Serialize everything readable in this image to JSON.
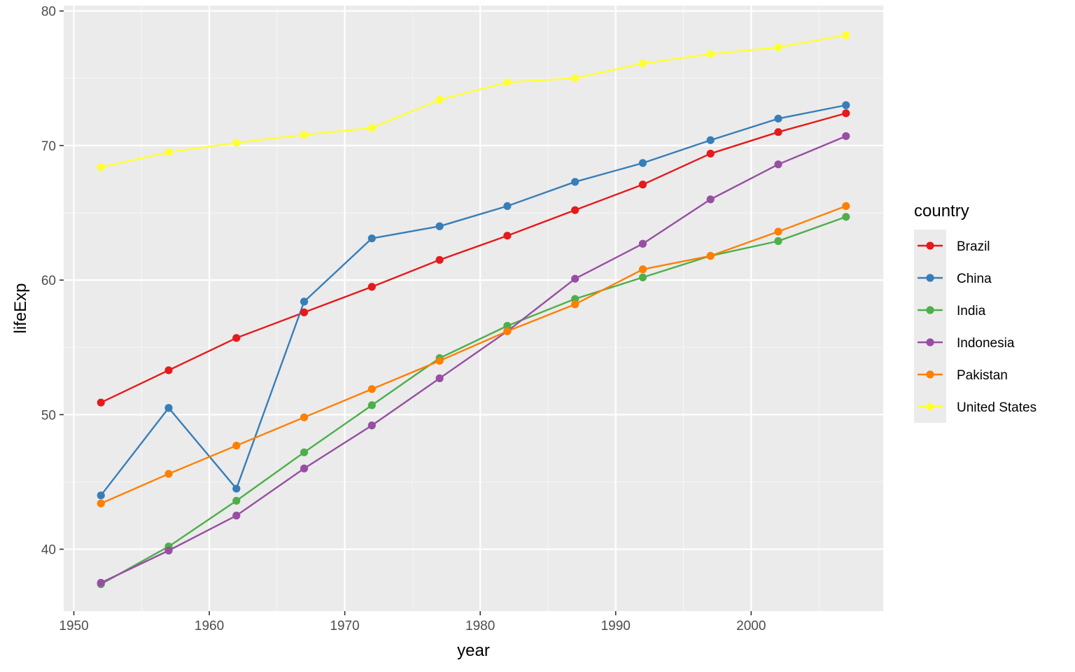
{
  "chart_data": {
    "type": "line",
    "xlabel": "year",
    "ylabel": "lifeExp",
    "xlim": [
      1949.25,
      2009.75
    ],
    "ylim": [
      35.4,
      80.4
    ],
    "x_ticks": [
      1950,
      1960,
      1970,
      1980,
      1990,
      2000
    ],
    "x_tick_labels": [
      "1950",
      "1960",
      "1970",
      "1980",
      "1990",
      "2000"
    ],
    "x_minor_ticks": [
      1955,
      1965,
      1975,
      1985,
      1995,
      2005
    ],
    "y_ticks": [
      40,
      50,
      60,
      70,
      80
    ],
    "y_tick_labels": [
      "40",
      "50",
      "60",
      "70",
      "80"
    ],
    "y_minor_ticks": [
      45,
      55,
      65,
      75
    ],
    "grid": true,
    "legend": {
      "title": "country",
      "position": "right"
    },
    "x": [
      1952,
      1957,
      1962,
      1967,
      1972,
      1977,
      1982,
      1987,
      1992,
      1997,
      2002,
      2007
    ],
    "series": [
      {
        "name": "Brazil",
        "color": "#E41A1C",
        "values": [
          50.9,
          53.3,
          55.7,
          57.6,
          59.5,
          61.5,
          63.3,
          65.2,
          67.1,
          69.4,
          71.0,
          72.4
        ]
      },
      {
        "name": "China",
        "color": "#377EB8",
        "values": [
          44.0,
          50.5,
          44.5,
          58.4,
          63.1,
          64.0,
          65.5,
          67.3,
          68.7,
          70.4,
          72.0,
          73.0
        ]
      },
      {
        "name": "India",
        "color": "#4DAF4A",
        "values": [
          37.4,
          40.2,
          43.6,
          47.2,
          50.7,
          54.2,
          56.6,
          58.6,
          60.2,
          61.8,
          62.9,
          64.7
        ]
      },
      {
        "name": "Indonesia",
        "color": "#984EA3",
        "values": [
          37.5,
          39.9,
          42.5,
          46.0,
          49.2,
          52.7,
          56.2,
          60.1,
          62.7,
          66.0,
          68.6,
          70.7
        ]
      },
      {
        "name": "Pakistan",
        "color": "#FF7F00",
        "values": [
          43.4,
          45.6,
          47.7,
          49.8,
          51.9,
          54.0,
          56.2,
          58.2,
          60.8,
          61.8,
          63.6,
          65.5
        ]
      },
      {
        "name": "United States",
        "color": "#FFFF33",
        "values": [
          68.4,
          69.5,
          70.2,
          70.8,
          71.3,
          73.4,
          74.7,
          75.0,
          76.1,
          76.8,
          77.3,
          78.2
        ]
      }
    ]
  },
  "colors": {
    "panel_background": "#EBEBEB",
    "grid_major": "#FFFFFF",
    "grid_minor": "#F5F5F5",
    "tick_color": "#333333"
  }
}
